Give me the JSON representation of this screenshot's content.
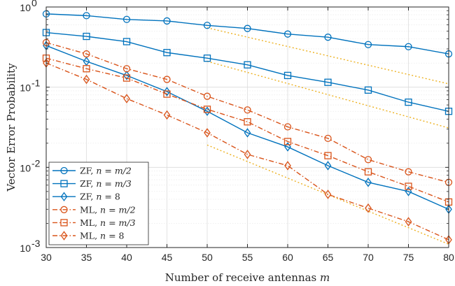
{
  "chart_data": {
    "type": "line",
    "title": "",
    "xlabel": "Number of receive antennas m",
    "xlabel_parts": {
      "text": "Number of receive antennas ",
      "var": "m"
    },
    "ylabel": "Vector Error Probability",
    "xlim": [
      30,
      80
    ],
    "ylim": [
      0.001,
      1
    ],
    "y_scale": "log",
    "grid": true,
    "legend_placement": "bottom-left",
    "x_ticks": [
      "30",
      "35",
      "40",
      "45",
      "50",
      "55",
      "60",
      "65",
      "70",
      "75",
      "80"
    ],
    "y_ticks": [
      {
        "base": "10",
        "exp": "-3",
        "value": 0.001
      },
      {
        "base": "10",
        "exp": "-2",
        "value": 0.01
      },
      {
        "base": "10",
        "exp": "-1",
        "value": 0.1
      },
      {
        "base": "10",
        "exp": "0",
        "value": 1
      }
    ],
    "x": [
      30,
      35,
      40,
      45,
      50,
      55,
      60,
      65,
      70,
      75,
      80
    ],
    "series": [
      {
        "name": "ZF, n = m/2",
        "label": {
          "prefix": "ZF, ",
          "var": "n",
          "rest": " = ",
          "expr": "m/2"
        },
        "color": "#0072BD",
        "marker": "circle",
        "dash": "solid",
        "values": [
          0.82,
          0.78,
          0.7,
          0.67,
          0.59,
          0.54,
          0.46,
          0.42,
          0.34,
          0.32,
          0.26
        ]
      },
      {
        "name": "ZF, n = m/3",
        "label": {
          "prefix": "ZF, ",
          "var": "n",
          "rest": " = ",
          "expr": "m/3"
        },
        "color": "#0072BD",
        "marker": "square",
        "dash": "solid",
        "values": [
          0.48,
          0.43,
          0.37,
          0.27,
          0.23,
          0.19,
          0.14,
          0.115,
          0.092,
          0.065,
          0.05
        ]
      },
      {
        "name": "ZF, n = 8",
        "label": {
          "prefix": "ZF, ",
          "var": "n",
          "rest": " = ",
          "expr": "8"
        },
        "color": "#0072BD",
        "marker": "diamond",
        "dash": "solid",
        "values": [
          0.33,
          0.21,
          0.14,
          0.088,
          0.05,
          0.027,
          0.018,
          0.0105,
          0.0065,
          0.005,
          0.003
        ]
      },
      {
        "name": "ML, n = m/2",
        "label": {
          "prefix": "ML, ",
          "var": "n",
          "rest": " = ",
          "expr": "m/2"
        },
        "color": "#D95319",
        "marker": "circle",
        "dash": "dashdot",
        "values": [
          0.36,
          0.26,
          0.17,
          0.125,
          0.077,
          0.052,
          0.032,
          0.023,
          0.0125,
          0.0088,
          0.0065
        ]
      },
      {
        "name": "ML, n = m/3",
        "label": {
          "prefix": "ML, ",
          "var": "n",
          "rest": " = ",
          "expr": "m/3"
        },
        "color": "#D95319",
        "marker": "square",
        "dash": "dashdot",
        "values": [
          0.23,
          0.17,
          0.13,
          0.082,
          0.053,
          0.037,
          0.021,
          0.014,
          0.0088,
          0.0058,
          0.0037
        ]
      },
      {
        "name": "ML, n = 8",
        "label": {
          "prefix": "ML, ",
          "var": "n",
          "rest": " = ",
          "expr": "8"
        },
        "color": "#D95319",
        "marker": "diamond",
        "dash": "dashdot",
        "values": [
          0.2,
          0.125,
          0.072,
          0.045,
          0.027,
          0.0145,
          0.0105,
          0.0046,
          0.0031,
          0.0021,
          0.00125
        ]
      }
    ],
    "reference_lines": [
      {
        "color": "#EDB120",
        "dash": "dotted",
        "x": [
          50,
          80
        ],
        "values": [
          0.55,
          0.11
        ]
      },
      {
        "color": "#EDB120",
        "dash": "dotted",
        "x": [
          50,
          80
        ],
        "values": [
          0.21,
          0.031
        ]
      },
      {
        "color": "#EDB120",
        "dash": "dotted",
        "x": [
          50,
          80
        ],
        "values": [
          0.019,
          0.0011
        ]
      }
    ]
  }
}
